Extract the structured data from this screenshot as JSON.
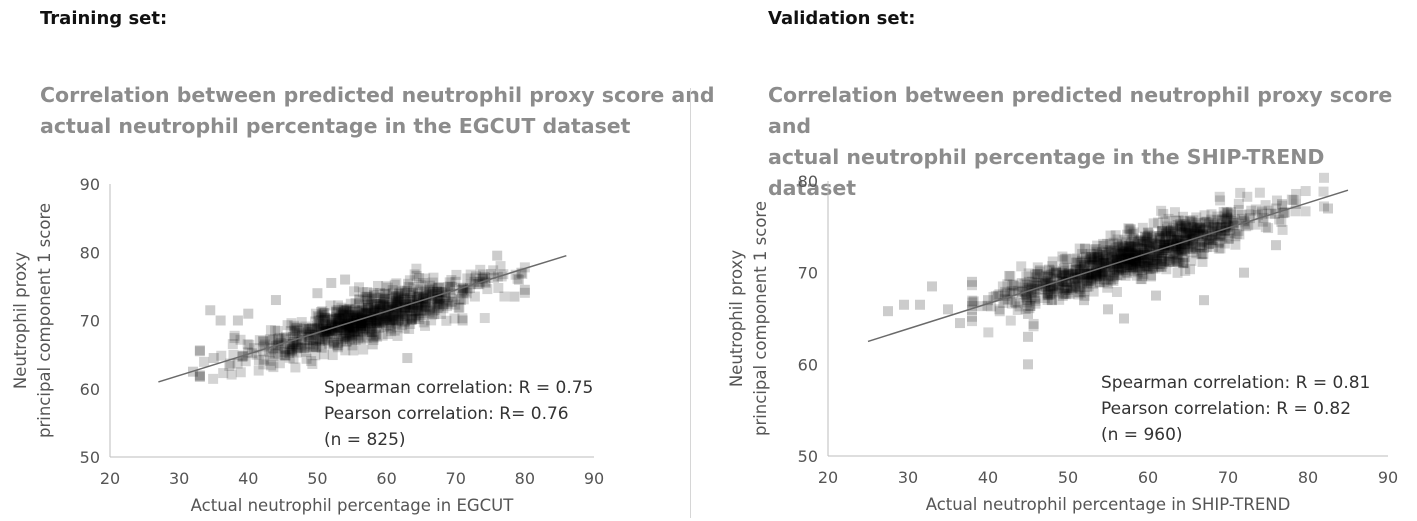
{
  "chart_data": [
    {
      "type": "scatter",
      "panel_heading": "Training set:",
      "title_lines": [
        "Correlation between predicted neutrophil proxy score and",
        "actual neutrophil percentage in the EGCUT dataset"
      ],
      "xlabel": "Actual neutrophil percentage in EGCUT",
      "ylabel_lines": [
        "Neutrophil proxy",
        "principal component 1 score"
      ],
      "xlim": [
        20,
        90
      ],
      "ylim": [
        50,
        90
      ],
      "xticks": [
        20,
        30,
        40,
        50,
        60,
        70,
        80,
        90
      ],
      "yticks": [
        50,
        60,
        70,
        80,
        90
      ],
      "annotation_lines": [
        "Spearman correlation: R = 0.75",
        "Pearson correlation: R= 0.76",
        "(n = 825)"
      ],
      "trendline": {
        "x": [
          27,
          86
        ],
        "y": [
          61,
          79.5
        ]
      },
      "point_cloud": {
        "n": 825,
        "x_mean": 57,
        "x_sd": 8.5,
        "slope": 0.31,
        "intercept": 52.5,
        "resid_sd": 1.7,
        "x_min": 33,
        "x_max": 80
      },
      "points": [
        [
          34.5,
          71.5
        ],
        [
          36,
          70
        ],
        [
          38.5,
          70
        ],
        [
          40,
          71
        ],
        [
          32,
          62.5
        ],
        [
          33,
          65.5
        ],
        [
          35,
          64.5
        ],
        [
          44,
          73
        ],
        [
          52,
          75.5
        ],
        [
          54,
          76
        ],
        [
          50,
          74
        ],
        [
          76,
          79.5
        ],
        [
          79.5,
          77
        ],
        [
          80,
          74.5
        ],
        [
          78.5,
          73.5
        ],
        [
          71,
          70
        ],
        [
          63,
          64.5
        ],
        [
          58,
          66.5
        ]
      ],
      "grid": false,
      "legend": "none",
      "marker_color": "#000000"
    },
    {
      "type": "scatter",
      "panel_heading": "Validation set:",
      "title_lines": [
        "Correlation between predicted neutrophil proxy score and",
        "actual neutrophil percentage in the SHIP-TREND dataset"
      ],
      "xlabel": "Actual neutrophil percentage in SHIP-TREND",
      "ylabel_lines": [
        "Neutrophil proxy",
        "principal component 1 score"
      ],
      "xlim": [
        20,
        90
      ],
      "ylim": [
        50,
        80
      ],
      "xticks": [
        20,
        30,
        40,
        50,
        60,
        70,
        80,
        90
      ],
      "yticks": [
        50,
        60,
        70,
        80
      ],
      "annotation_lines": [
        "Spearman correlation: R = 0.81",
        "Pearson correlation: R = 0.82",
        "(n = 960)"
      ],
      "trendline": {
        "x": [
          25,
          85
        ],
        "y": [
          62.5,
          79
        ]
      },
      "point_cloud": {
        "n": 960,
        "x_mean": 58,
        "x_sd": 8.5,
        "slope": 0.28,
        "intercept": 55.5,
        "resid_sd": 1.2,
        "x_min": 38,
        "x_max": 82
      },
      "points": [
        [
          27.5,
          65.8
        ],
        [
          29.5,
          66.5
        ],
        [
          31.5,
          66.5
        ],
        [
          33,
          68.5
        ],
        [
          35,
          66
        ],
        [
          36.5,
          64.5
        ],
        [
          38,
          69
        ],
        [
          40,
          67
        ],
        [
          45,
          63
        ],
        [
          45,
          60
        ],
        [
          45,
          65.5
        ],
        [
          48,
          67
        ],
        [
          52,
          67
        ],
        [
          55,
          66
        ],
        [
          57,
          65
        ],
        [
          61,
          67.5
        ],
        [
          67,
          67
        ],
        [
          72,
          70
        ],
        [
          78.5,
          77.5
        ],
        [
          82.5,
          77
        ],
        [
          76,
          73
        ]
      ],
      "grid": false,
      "legend": "none",
      "marker_color": "#000000"
    }
  ]
}
